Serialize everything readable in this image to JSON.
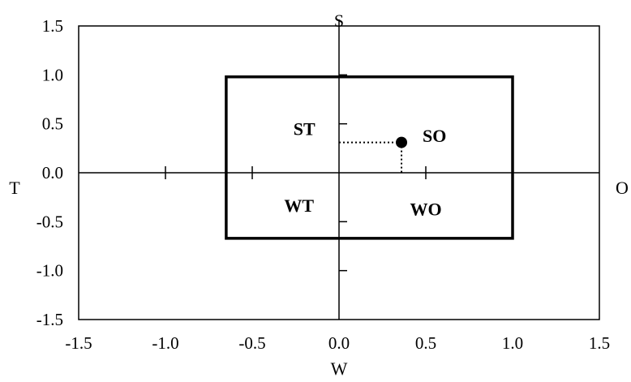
{
  "chart_data": {
    "type": "scatter",
    "title": "",
    "xlim": [
      -1.5,
      1.5
    ],
    "ylim": [
      -1.5,
      1.5
    ],
    "x_ticks": [
      -1.5,
      -1.0,
      -0.5,
      0.0,
      0.5,
      1.0,
      1.5
    ],
    "y_ticks": [
      -1.5,
      -1.0,
      -0.5,
      0.0,
      0.5,
      1.0,
      1.5
    ],
    "x_tick_labels": [
      "-1.5",
      "-1.0",
      "-0.5",
      "0.0",
      "0.5",
      "1.0",
      "1.5"
    ],
    "y_tick_labels": [
      "-1.5",
      "-1.0",
      "-0.5",
      "0.0",
      "0.5",
      "1.0",
      "1.5"
    ],
    "axis_letters": {
      "top": "S",
      "bottom": "W",
      "left": "T",
      "right": "O"
    },
    "region": {
      "x_min": -0.65,
      "x_max": 1.0,
      "y_min": -0.67,
      "y_max": 0.98
    },
    "quadrant_labels": [
      {
        "text": "ST",
        "x": -0.2,
        "y": 0.45
      },
      {
        "text": "SO",
        "x": 0.55,
        "y": 0.38
      },
      {
        "text": "WT",
        "x": -0.23,
        "y": -0.33
      },
      {
        "text": "WO",
        "x": 0.5,
        "y": -0.37
      }
    ],
    "point": {
      "x": 0.36,
      "y": 0.31
    },
    "grid": false,
    "legend": "none",
    "colors": {
      "ink": "#000000",
      "background": "#ffffff"
    }
  }
}
